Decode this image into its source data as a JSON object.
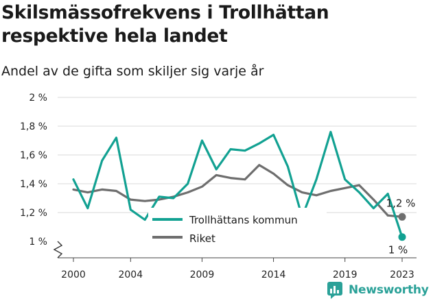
{
  "header": {
    "title": "Skilsmässofrekvens i Trollhättan respektive hela landet",
    "subtitle": "Andel av de gifta som skiljer sig varje år"
  },
  "brand": {
    "name": "Newsworthy",
    "logo_icon": "newsworthy-chart-icon",
    "color": "#2aa198"
  },
  "colors": {
    "trollhattan": "#12a192",
    "riket": "#6e6e6e",
    "grid": "#d9d9d9"
  },
  "chart_data": {
    "type": "line",
    "x": [
      2000,
      2001,
      2002,
      2003,
      2004,
      2005,
      2006,
      2007,
      2008,
      2009,
      2010,
      2011,
      2012,
      2013,
      2014,
      2015,
      2016,
      2017,
      2018,
      2019,
      2020,
      2021,
      2022,
      2023
    ],
    "series": [
      {
        "name": "Trollhättans kommun",
        "values": [
          1.43,
          1.23,
          1.56,
          1.72,
          1.22,
          1.15,
          1.31,
          1.3,
          1.4,
          1.7,
          1.5,
          1.64,
          1.63,
          1.68,
          1.74,
          1.52,
          1.17,
          1.43,
          1.76,
          1.43,
          1.34,
          1.23,
          1.33,
          1.03
        ]
      },
      {
        "name": "Riket",
        "values": [
          1.36,
          1.34,
          1.36,
          1.35,
          1.29,
          1.28,
          1.29,
          1.31,
          1.34,
          1.38,
          1.46,
          1.44,
          1.43,
          1.53,
          1.47,
          1.39,
          1.34,
          1.32,
          1.35,
          1.37,
          1.39,
          1.29,
          1.18,
          1.17
        ]
      }
    ],
    "x_ticks": [
      2000,
      2004,
      2009,
      2014,
      2019,
      2023
    ],
    "y_ticks": [
      {
        "value": 1.0,
        "label": "1 %"
      },
      {
        "value": 1.2,
        "label": "1,2 %"
      },
      {
        "value": 1.4,
        "label": "1,4 %"
      },
      {
        "value": 1.6,
        "label": "1,6 %"
      },
      {
        "value": 1.8,
        "label": "1,8 %"
      },
      {
        "value": 2.0,
        "label": "2 %"
      }
    ],
    "ylim": [
      1.0,
      2.0
    ],
    "xlim": [
      2000,
      2023
    ],
    "grid": true,
    "y_axis_break": true,
    "legend_position": "bottom-center",
    "end_labels": [
      {
        "series": "Riket",
        "text": "1,2 %"
      },
      {
        "series": "Trollhättans kommun",
        "text": "1 %"
      }
    ]
  }
}
